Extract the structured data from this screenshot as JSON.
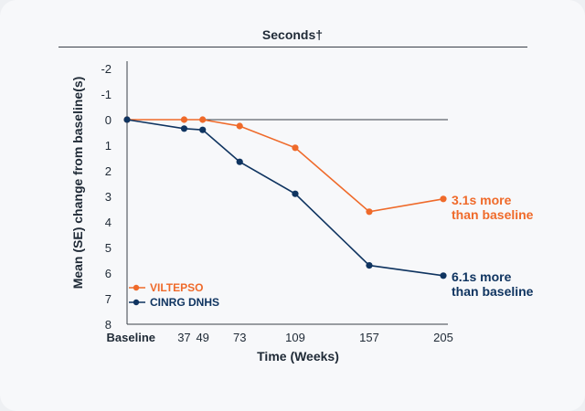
{
  "header": {
    "title": "Seconds†"
  },
  "chart_data": {
    "type": "line",
    "xlabel": "Time (Weeks)",
    "ylabel": "Mean (SE) change from baseline(s)",
    "categories": [
      "Baseline",
      "37",
      "49",
      "73",
      "109",
      "157",
      "205"
    ],
    "x": [
      0,
      37,
      49,
      73,
      109,
      157,
      205
    ],
    "y_ticks": [
      "-2",
      "-1",
      "0",
      "1",
      "2",
      "3",
      "4",
      "5",
      "6",
      "7",
      "8"
    ],
    "ylim": [
      8,
      -2
    ],
    "y_inverted": true,
    "grid": false,
    "legend_position": "bottom-left",
    "series": [
      {
        "name": "VILTEPSO",
        "color": "#ef6a2a",
        "values": [
          0,
          0,
          0,
          0.25,
          1.1,
          3.6,
          3.1
        ],
        "end_label": [
          "3.1s more",
          "than baseline"
        ]
      },
      {
        "name": "CINRG DNHS",
        "color": "#0f3460",
        "values": [
          0,
          0.35,
          0.4,
          1.65,
          2.9,
          5.7,
          6.1
        ],
        "end_label": [
          "6.1s more",
          "than baseline"
        ]
      }
    ]
  }
}
